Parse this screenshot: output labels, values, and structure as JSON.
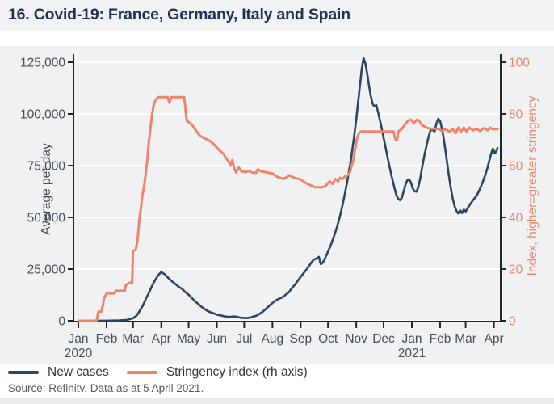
{
  "header": {
    "title": "16. Covid-19: France, Germany, Italy and Spain"
  },
  "legend": {
    "items": [
      {
        "label": "New cases",
        "color": "#2c4565"
      },
      {
        "label": "Stringency index (rh axis)",
        "color": "#f0846a"
      }
    ]
  },
  "footer": {
    "source": "Source: Refinitv. Data as at 5 April 2021."
  },
  "chart_data": {
    "type": "line",
    "title": "16. Covid-19: France, Germany, Italy and Spain",
    "grid": "horizontal-white",
    "legend_position": "bottom-left",
    "colors": {
      "new_cases": "#2c4565",
      "stringency": "#f0846a",
      "axis": "#212529",
      "tick_label": "#454e5a",
      "right_label": "#ef8467"
    },
    "x_axis": {
      "unit": "days since 1 Jan 2020",
      "range_days": [
        -6,
        464
      ],
      "months": [
        {
          "label": "Jan",
          "day": 0
        },
        {
          "label": "Feb",
          "day": 31
        },
        {
          "label": "Mar",
          "day": 60
        },
        {
          "label": "Apr",
          "day": 91
        },
        {
          "label": "May",
          "day": 121
        },
        {
          "label": "Jun",
          "day": 152
        },
        {
          "label": "Jul",
          "day": 182
        },
        {
          "label": "Aug",
          "day": 213
        },
        {
          "label": "Sep",
          "day": 244
        },
        {
          "label": "Oct",
          "day": 274
        },
        {
          "label": "Nov",
          "day": 305
        },
        {
          "label": "Dec",
          "day": 335
        },
        {
          "label": "Jan",
          "day": 366
        },
        {
          "label": "Feb",
          "day": 397
        },
        {
          "label": "Mar",
          "day": 425
        },
        {
          "label": "Apr",
          "day": 456
        }
      ],
      "years": [
        {
          "label": "2020",
          "day": 0
        },
        {
          "label": "2021",
          "day": 366
        }
      ]
    },
    "y_left": {
      "label": "Average per day",
      "range": [
        0,
        125000
      ],
      "ticks": [
        0,
        25000,
        50000,
        75000,
        100000,
        125000
      ],
      "tick_labels": [
        "0",
        "25,000",
        "50,000",
        "75,000",
        "100,000",
        "125,000"
      ]
    },
    "y_right": {
      "label": "Index, higher=greater stringency",
      "range": [
        0,
        100
      ],
      "ticks": [
        0,
        20,
        40,
        60,
        80,
        100
      ],
      "tick_labels": [
        "0",
        "20",
        "40",
        "60",
        "80",
        "100"
      ]
    },
    "series": [
      {
        "name": "New cases",
        "axis": "left",
        "color": "#2c4565",
        "points": [
          [
            0,
            0
          ],
          [
            20,
            0
          ],
          [
            31,
            50
          ],
          [
            45,
            150
          ],
          [
            53,
            400
          ],
          [
            60,
            1200
          ],
          [
            64,
            2500
          ],
          [
            67,
            4500
          ],
          [
            71,
            7500
          ],
          [
            74,
            10500
          ],
          [
            78,
            14000
          ],
          [
            81,
            17000
          ],
          [
            84,
            19500
          ],
          [
            88,
            22200
          ],
          [
            91,
            23500
          ],
          [
            93,
            23000
          ],
          [
            95,
            22400
          ],
          [
            99,
            20600
          ],
          [
            103,
            19000
          ],
          [
            107,
            17600
          ],
          [
            110,
            16500
          ],
          [
            114,
            15400
          ],
          [
            117,
            14000
          ],
          [
            121,
            12600
          ],
          [
            125,
            10800
          ],
          [
            128,
            9500
          ],
          [
            132,
            8000
          ],
          [
            135,
            6800
          ],
          [
            139,
            5600
          ],
          [
            142,
            4700
          ],
          [
            146,
            4000
          ],
          [
            149,
            3500
          ],
          [
            152,
            3000
          ],
          [
            156,
            2600
          ],
          [
            160,
            2200
          ],
          [
            163,
            2000
          ],
          [
            167,
            1900
          ],
          [
            170,
            2100
          ],
          [
            174,
            1900
          ],
          [
            177,
            1600
          ],
          [
            181,
            1400
          ],
          [
            184,
            1300
          ],
          [
            188,
            1500
          ],
          [
            191,
            1900
          ],
          [
            195,
            2400
          ],
          [
            198,
            3100
          ],
          [
            202,
            4200
          ],
          [
            205,
            5400
          ],
          [
            209,
            7000
          ],
          [
            213,
            8600
          ],
          [
            216,
            9600
          ],
          [
            220,
            10600
          ],
          [
            224,
            11400
          ],
          [
            227,
            12400
          ],
          [
            231,
            13800
          ],
          [
            234,
            15600
          ],
          [
            238,
            17600
          ],
          [
            241,
            19400
          ],
          [
            244,
            21200
          ],
          [
            248,
            23400
          ],
          [
            252,
            25800
          ],
          [
            255,
            27600
          ],
          [
            258,
            29400
          ],
          [
            262,
            30200
          ],
          [
            264,
            30900
          ],
          [
            266,
            27400
          ],
          [
            268,
            28000
          ],
          [
            270,
            29500
          ],
          [
            273,
            32500
          ],
          [
            277,
            36500
          ],
          [
            281,
            41500
          ],
          [
            284,
            45500
          ],
          [
            287,
            50500
          ],
          [
            290,
            56000
          ],
          [
            293,
            62500
          ],
          [
            296,
            69500
          ],
          [
            299,
            77500
          ],
          [
            302,
            87000
          ],
          [
            305,
            97500
          ],
          [
            307,
            105500
          ],
          [
            309,
            113500
          ],
          [
            311,
            121500
          ],
          [
            313,
            127000
          ],
          [
            315,
            124500
          ],
          [
            317,
            119500
          ],
          [
            319,
            113500
          ],
          [
            321,
            108500
          ],
          [
            323,
            104800
          ],
          [
            325,
            103600
          ],
          [
            327,
            104300
          ],
          [
            329,
            100800
          ],
          [
            332,
            95000
          ],
          [
            335,
            88500
          ],
          [
            338,
            82000
          ],
          [
            341,
            75500
          ],
          [
            344,
            69500
          ],
          [
            347,
            64000
          ],
          [
            349,
            60800
          ],
          [
            351,
            59000
          ],
          [
            353,
            58300
          ],
          [
            355,
            59500
          ],
          [
            357,
            62500
          ],
          [
            359,
            65800
          ],
          [
            361,
            68000
          ],
          [
            363,
            68400
          ],
          [
            365,
            66800
          ],
          [
            367,
            64000
          ],
          [
            369,
            62600
          ],
          [
            371,
            62400
          ],
          [
            373,
            64500
          ],
          [
            375,
            68500
          ],
          [
            377,
            73500
          ],
          [
            380,
            80500
          ],
          [
            383,
            86500
          ],
          [
            385,
            90000
          ],
          [
            387,
            92600
          ],
          [
            389,
            92200
          ],
          [
            391,
            91600
          ],
          [
            393,
            95500
          ],
          [
            395,
            97600
          ],
          [
            397,
            96500
          ],
          [
            399,
            93000
          ],
          [
            401,
            88000
          ],
          [
            403,
            82000
          ],
          [
            405,
            75500
          ],
          [
            407,
            69000
          ],
          [
            409,
            63500
          ],
          [
            411,
            58800
          ],
          [
            413,
            55300
          ],
          [
            415,
            53100
          ],
          [
            417,
            51900
          ],
          [
            419,
            53400
          ],
          [
            421,
            52100
          ],
          [
            423,
            53800
          ],
          [
            425,
            52800
          ],
          [
            428,
            55000
          ],
          [
            431,
            57000
          ],
          [
            434,
            58800
          ],
          [
            437,
            60400
          ],
          [
            440,
            63000
          ],
          [
            443,
            66200
          ],
          [
            446,
            69800
          ],
          [
            449,
            74000
          ],
          [
            451,
            77500
          ],
          [
            453,
            80800
          ],
          [
            455,
            83200
          ],
          [
            457,
            80900
          ],
          [
            459,
            82300
          ],
          [
            460,
            83500
          ]
        ]
      },
      {
        "name": "Stringency index (rh axis)",
        "axis": "right",
        "color": "#f0846a",
        "points": [
          [
            0,
            0
          ],
          [
            20,
            0
          ],
          [
            22,
            3.5
          ],
          [
            25,
            3.5
          ],
          [
            27,
            6
          ],
          [
            28,
            8.5
          ],
          [
            31,
            10.6
          ],
          [
            40,
            10.6
          ],
          [
            41,
            11.6
          ],
          [
            51,
            11.6
          ],
          [
            52,
            13.8
          ],
          [
            56,
            14.7
          ],
          [
            59,
            14.7
          ],
          [
            60,
            27
          ],
          [
            63,
            27.5
          ],
          [
            65,
            31
          ],
          [
            67,
            39.5
          ],
          [
            69,
            44.5
          ],
          [
            70,
            48
          ],
          [
            72,
            51.5
          ],
          [
            74,
            57
          ],
          [
            75,
            60
          ],
          [
            76,
            63.5
          ],
          [
            77,
            68
          ],
          [
            79,
            74
          ],
          [
            81,
            80
          ],
          [
            83,
            84
          ],
          [
            85,
            85.5
          ],
          [
            88,
            86.5
          ],
          [
            98,
            86.5
          ],
          [
            100,
            84.3
          ],
          [
            102,
            86.5
          ],
          [
            116,
            86.5
          ],
          [
            117,
            84
          ],
          [
            118,
            80
          ],
          [
            119,
            77.3
          ],
          [
            122,
            76.6
          ],
          [
            125,
            75.6
          ],
          [
            128,
            74.2
          ],
          [
            131,
            72.7
          ],
          [
            133,
            71.7
          ],
          [
            137,
            70.8
          ],
          [
            144,
            69.7
          ],
          [
            148,
            68.5
          ],
          [
            152,
            67
          ],
          [
            156,
            65.5
          ],
          [
            159,
            64.7
          ],
          [
            163,
            62.5
          ],
          [
            165,
            61.7
          ],
          [
            167,
            60
          ],
          [
            169,
            62.2
          ],
          [
            171,
            59
          ],
          [
            173,
            57.3
          ],
          [
            176,
            59.4
          ],
          [
            179,
            57.8
          ],
          [
            183,
            57.5
          ],
          [
            187,
            57.9
          ],
          [
            191,
            57.3
          ],
          [
            195,
            57.2
          ],
          [
            197,
            58.6
          ],
          [
            200,
            57.9
          ],
          [
            205,
            57.5
          ],
          [
            209,
            57.2
          ],
          [
            213,
            57
          ],
          [
            217,
            55.9
          ],
          [
            221,
            55.3
          ],
          [
            225,
            54.9
          ],
          [
            229,
            55.6
          ],
          [
            231,
            56.3
          ],
          [
            235,
            55.6
          ],
          [
            239,
            55.1
          ],
          [
            243,
            54.8
          ],
          [
            247,
            53.9
          ],
          [
            251,
            53
          ],
          [
            255,
            52.4
          ],
          [
            259,
            51.7
          ],
          [
            266,
            51.6
          ],
          [
            271,
            52
          ],
          [
            274,
            53.3
          ],
          [
            276,
            53.9
          ],
          [
            279,
            52.9
          ],
          [
            282,
            54.8
          ],
          [
            285,
            53.9
          ],
          [
            287,
            55.3
          ],
          [
            290,
            54.8
          ],
          [
            293,
            55.9
          ],
          [
            296,
            56.3
          ],
          [
            298,
            57.5
          ],
          [
            300,
            60.1
          ],
          [
            302,
            62.4
          ],
          [
            303,
            65
          ],
          [
            305,
            68.9
          ],
          [
            306,
            71
          ],
          [
            308,
            72.5
          ],
          [
            310,
            73.2
          ],
          [
            346,
            73.2
          ],
          [
            348,
            70.1
          ],
          [
            350,
            70.1
          ],
          [
            351,
            73.2
          ],
          [
            355,
            74.2
          ],
          [
            358,
            75.7
          ],
          [
            361,
            77
          ],
          [
            364,
            77.8
          ],
          [
            366,
            77.5
          ],
          [
            368,
            76.3
          ],
          [
            370,
            77.2
          ],
          [
            372,
            77.8
          ],
          [
            374,
            77.3
          ],
          [
            377,
            75.7
          ],
          [
            380,
            75.1
          ],
          [
            382,
            74.7
          ],
          [
            386,
            74.3
          ],
          [
            392,
            74.3
          ],
          [
            396,
            74
          ],
          [
            399,
            73.4
          ],
          [
            403,
            74.2
          ],
          [
            407,
            73.1
          ],
          [
            411,
            74.2
          ],
          [
            414,
            72.6
          ],
          [
            417,
            74.7
          ],
          [
            420,
            73.1
          ],
          [
            423,
            74.7
          ],
          [
            426,
            73.2
          ],
          [
            429,
            74.7
          ],
          [
            433,
            73.7
          ],
          [
            437,
            74.2
          ],
          [
            441,
            73.4
          ],
          [
            445,
            74.5
          ],
          [
            449,
            73.7
          ],
          [
            452,
            74.7
          ],
          [
            455,
            74.1
          ],
          [
            460,
            74.2
          ]
        ]
      }
    ]
  }
}
